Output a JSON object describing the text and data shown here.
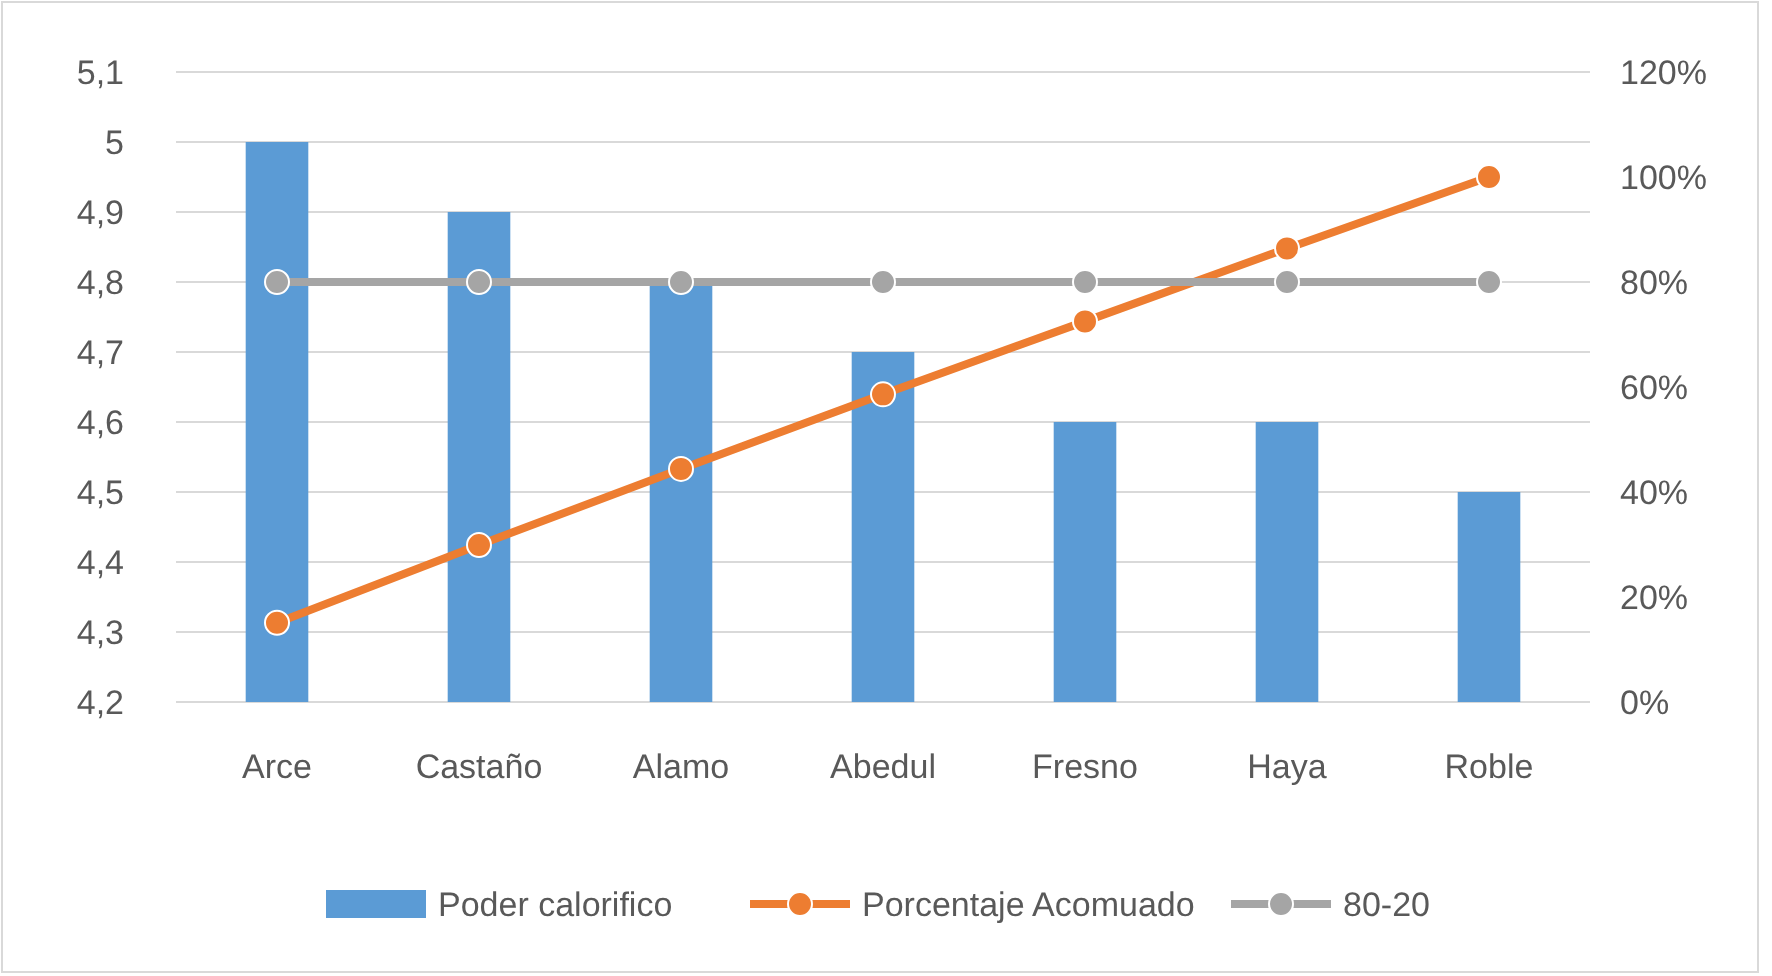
{
  "chart_data": {
    "type": "bar",
    "categories": [
      "Arce",
      "Castaño",
      "Alamo",
      "Abedul",
      "Fresno",
      "Haya",
      "Roble"
    ],
    "series": [
      {
        "name": "Poder calorifico",
        "color": "#5b9bd5",
        "values": [
          5,
          4.9,
          4.8,
          4.7,
          4.6,
          4.6,
          4.5
        ]
      },
      {
        "name": "Porcentaje Acomuado",
        "type": "line",
        "axis": "y2",
        "color": "#ed7d31",
        "values": [
          15.1,
          29.9,
          44.4,
          58.6,
          72.5,
          86.4,
          100
        ]
      },
      {
        "name": "80-20",
        "type": "line",
        "axis": "y2",
        "color": "#a5a5a5",
        "values": [
          80,
          80,
          80,
          80,
          80,
          80,
          80
        ]
      }
    ],
    "ylim": [
      4.2,
      5.1
    ],
    "yticks": [
      {
        "value": 4.2,
        "label": "4,2"
      },
      {
        "value": 4.3,
        "label": "4,3"
      },
      {
        "value": 4.4,
        "label": "4,4"
      },
      {
        "value": 4.5,
        "label": "4,5"
      },
      {
        "value": 4.6,
        "label": "4,6"
      },
      {
        "value": 4.7,
        "label": "4,7"
      },
      {
        "value": 4.8,
        "label": "4,8"
      },
      {
        "value": 4.9,
        "label": "4,9"
      },
      5,
      {
        "value": 5.1,
        "label": "5,1"
      }
    ],
    "y2lim": [
      0,
      120
    ],
    "y2ticks": [
      {
        "value": 0,
        "label": "0%"
      },
      {
        "value": 20,
        "label": "20%"
      },
      {
        "value": 40,
        "label": "40%"
      },
      {
        "value": 60,
        "label": "60%"
      },
      {
        "value": 80,
        "label": "80%"
      },
      {
        "value": 100,
        "label": "100%"
      },
      {
        "value": 120,
        "label": "120%"
      }
    ],
    "grid": "y",
    "legend": "bottom",
    "marker": "circle",
    "line_style": "solid"
  }
}
